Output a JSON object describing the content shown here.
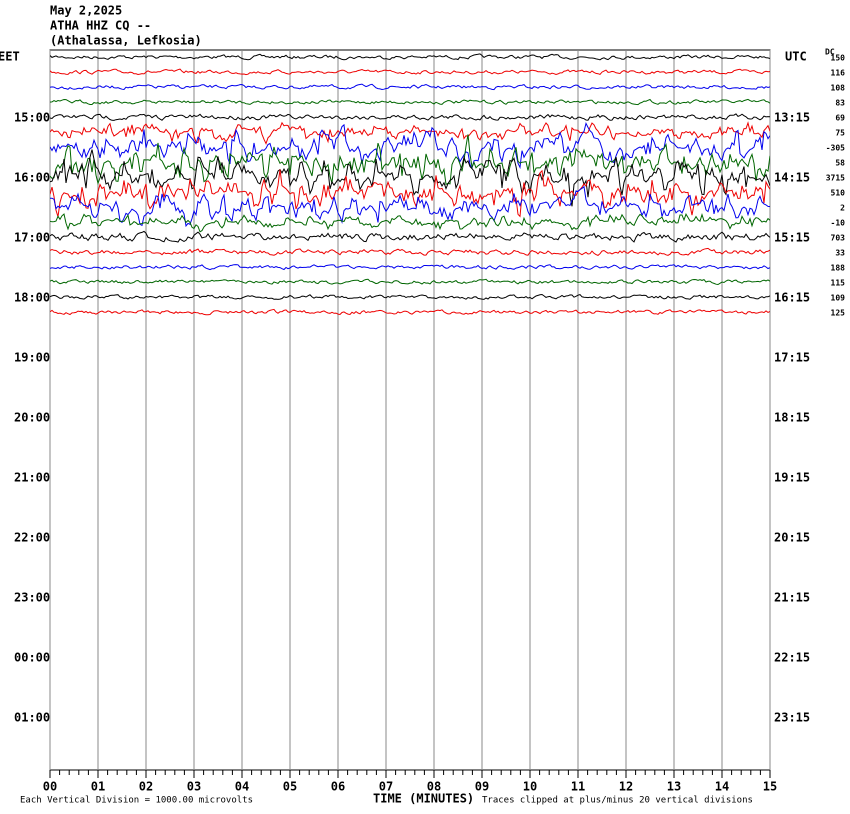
{
  "header": {
    "date": "May 2,2025",
    "station": "ATHA HHZ CQ --",
    "location": "(Athalassa, Lefkosia)"
  },
  "left_axis": {
    "title": "EET",
    "labels": [
      "15:00",
      "16:00",
      "17:00",
      "18:00",
      "19:00",
      "20:00",
      "21:00",
      "22:00",
      "23:00",
      "00:00",
      "01:00"
    ]
  },
  "right_axis": {
    "title": "UTC",
    "labels": [
      "13:15",
      "14:15",
      "15:15",
      "16:15",
      "17:15",
      "18:15",
      "19:15",
      "20:15",
      "21:15",
      "22:15",
      "23:15"
    ]
  },
  "dc": {
    "title": "DC",
    "offsets": [
      "150",
      "116",
      "108",
      "83",
      "69",
      "75",
      "-305",
      "58",
      "3715",
      "510",
      "2",
      "-10",
      "703",
      "33",
      "188",
      "115",
      "109",
      "125"
    ]
  },
  "x_axis": {
    "labels": [
      "00",
      "01",
      "02",
      "03",
      "04",
      "05",
      "06",
      "07",
      "08",
      "09",
      "10",
      "11",
      "12",
      "13",
      "14",
      "15"
    ],
    "title": "TIME (MINUTES)"
  },
  "footer": {
    "scale": "Each Vertical Division = 1000.00 microvolts",
    "clip": "Traces clipped at plus/minus 20 vertical divisions"
  }
}
